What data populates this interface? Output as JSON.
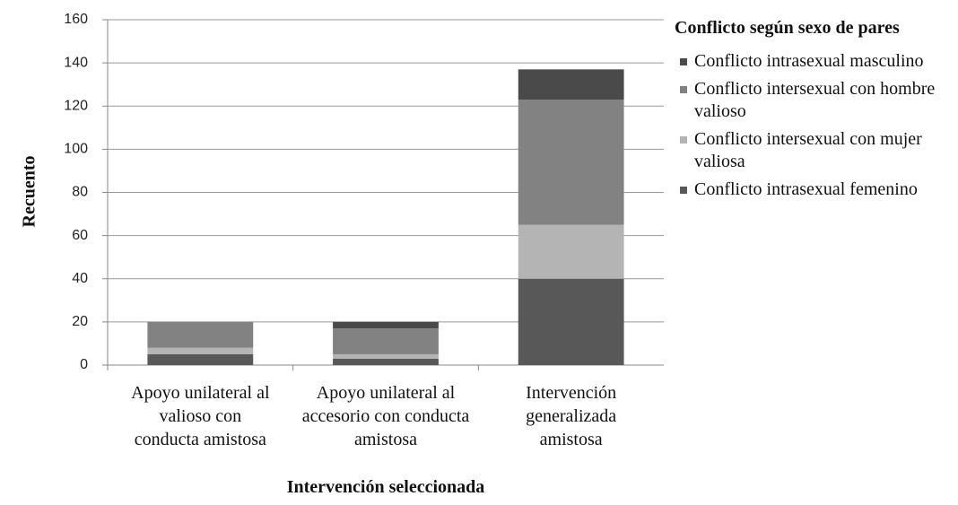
{
  "chart_data": {
    "type": "stacked_bar",
    "categories": [
      "Apoyo unilateral al valioso con conducta amistosa",
      "Apoyo unilateral al accesorio con conducta amistosa",
      "Intervención generalizada amistosa"
    ],
    "series": [
      {
        "name": "Conflicto intrasexual femenino",
        "color": "#585858",
        "values": [
          5,
          3,
          40
        ]
      },
      {
        "name": "Conflicto intersexual con mujer valiosa",
        "color": "#b4b4b4",
        "values": [
          3,
          2,
          25
        ]
      },
      {
        "name": "Conflicto intersexual con hombre valioso",
        "color": "#828282",
        "values": [
          12,
          12,
          58
        ]
      },
      {
        "name": "Conflicto intrasexual masculino",
        "color": "#4a4a4a",
        "values": [
          0,
          3,
          14
        ]
      }
    ],
    "ylim": [
      0,
      160
    ],
    "yticks": [
      0,
      20,
      40,
      60,
      80,
      100,
      120,
      140,
      160
    ],
    "grid": true,
    "xlabel": "Intervención seleccionada",
    "ylabel": "Recuento",
    "legend_title": "Conflicto según sexo de pares",
    "legend_position": "right"
  }
}
